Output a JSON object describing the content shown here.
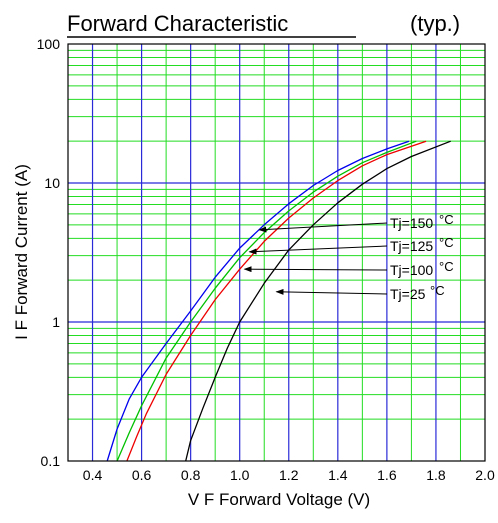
{
  "chart_data": {
    "type": "line",
    "title": "Forward Characteristic",
    "title_note": "(typ.)",
    "xlabel": "V F  Forward Voltage  (V)",
    "ylabel": "I F  Forward Current  (A)",
    "x_scale": "linear",
    "y_scale": "log",
    "xlim": [
      0.3,
      2.0
    ],
    "ylim": [
      0.1,
      100
    ],
    "grid": true,
    "x_ticks": [
      "0.4",
      "0.6",
      "0.8",
      "1.0",
      "1.2",
      "1.4",
      "1.6",
      "1.8",
      "2.0"
    ],
    "x_tick_values": [
      0.4,
      0.6,
      0.8,
      1.0,
      1.2,
      1.4,
      1.6,
      1.8,
      2.0
    ],
    "y_ticks": [
      "0.1",
      "1",
      "10",
      "100"
    ],
    "y_tick_values": [
      0.1,
      1,
      10,
      100
    ],
    "colors": {
      "grid_major": "#2a2ad8",
      "grid_minor": "#22dd22",
      "tj150": "#0000ee",
      "tj125": "#00c000",
      "tj100": "#ee0000",
      "tj25": "#000000"
    },
    "series": [
      {
        "name": "Tj=150 °C",
        "label_main": "Tj=150",
        "label_unit": "°C",
        "color": "#0000ee",
        "x": [
          0.46,
          0.5,
          0.55,
          0.6,
          0.7,
          0.8,
          0.9,
          1.0,
          1.1,
          1.2,
          1.3,
          1.4,
          1.5,
          1.6,
          1.69
        ],
        "y": [
          0.1,
          0.17,
          0.28,
          0.4,
          0.7,
          1.2,
          2.1,
          3.4,
          5.0,
          7.1,
          9.6,
          12.3,
          15.0,
          17.6,
          20.0
        ],
        "arrow_to": [
          1.08,
          4.6
        ]
      },
      {
        "name": "Tj=125 °C",
        "label_main": "Tj=125",
        "label_unit": "°C",
        "color": "#00c000",
        "x": [
          0.5,
          0.55,
          0.6,
          0.7,
          0.8,
          0.9,
          1.0,
          1.1,
          1.2,
          1.3,
          1.4,
          1.5,
          1.6,
          1.72
        ],
        "y": [
          0.1,
          0.16,
          0.25,
          0.55,
          1.0,
          1.75,
          2.9,
          4.4,
          6.3,
          8.6,
          11.2,
          14.0,
          16.6,
          20.0
        ],
        "arrow_to": [
          1.04,
          3.2
        ]
      },
      {
        "name": "Tj=100 °C",
        "label_main": "Tj=100",
        "label_unit": "°C",
        "color": "#ee0000",
        "x": [
          0.54,
          0.58,
          0.62,
          0.7,
          0.8,
          0.9,
          1.0,
          1.1,
          1.2,
          1.3,
          1.4,
          1.5,
          1.6,
          1.76
        ],
        "y": [
          0.1,
          0.15,
          0.22,
          0.42,
          0.8,
          1.45,
          2.4,
          3.8,
          5.6,
          7.8,
          10.4,
          13.3,
          16.0,
          20.0
        ],
        "arrow_to": [
          1.02,
          2.4
        ]
      },
      {
        "name": "Tj=25 °C",
        "label_main": "Tj=25",
        "label_unit": "°C",
        "color": "#000000",
        "x": [
          0.78,
          0.8,
          0.85,
          0.9,
          0.95,
          1.0,
          1.1,
          1.2,
          1.3,
          1.4,
          1.5,
          1.6,
          1.7,
          1.86
        ],
        "y": [
          0.1,
          0.14,
          0.24,
          0.4,
          0.65,
          1.0,
          1.9,
          3.3,
          5.0,
          7.2,
          9.8,
          12.7,
          15.5,
          20.0
        ],
        "arrow_to": [
          1.15,
          1.65
        ]
      }
    ]
  }
}
